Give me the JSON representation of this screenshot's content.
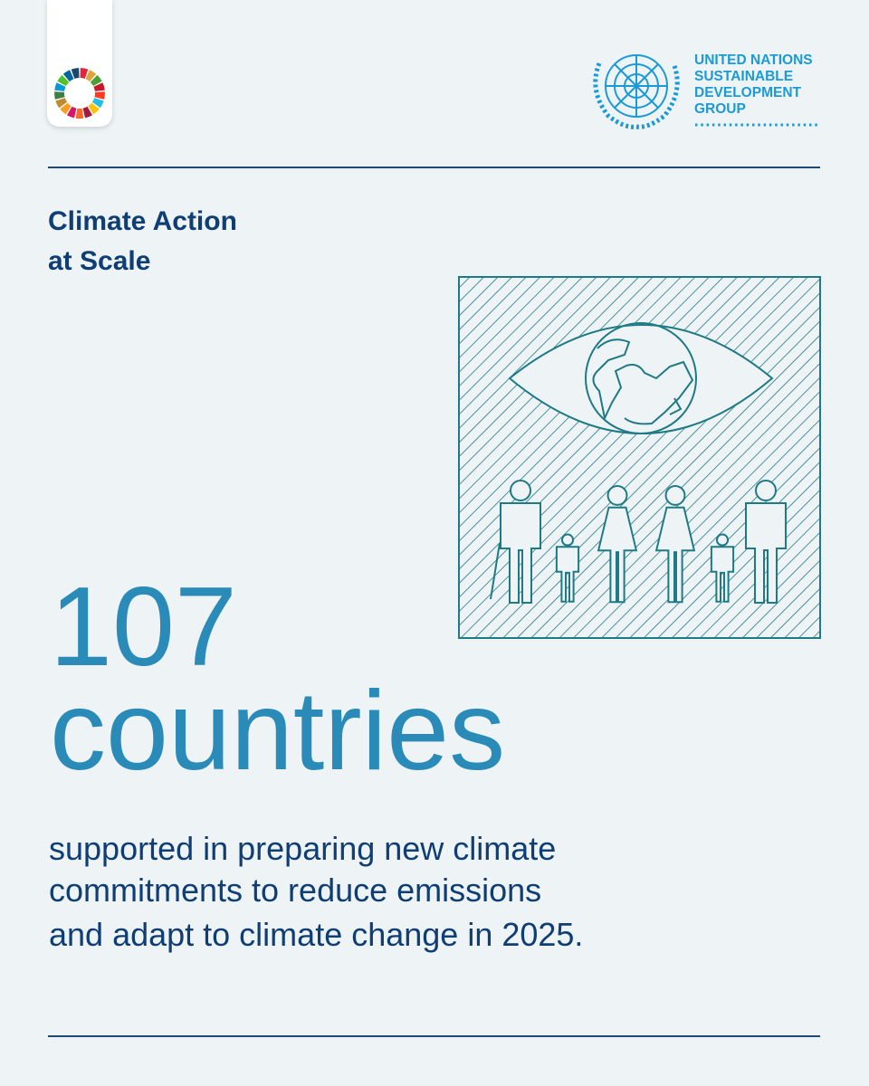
{
  "logo": {
    "lines": [
      "UNITED NATIONS",
      "SUSTAINABLE",
      "DEVELOPMENT",
      "GROUP"
    ]
  },
  "heading": {
    "lines": [
      "Climate Action",
      "at Scale"
    ]
  },
  "stat": {
    "number": "107",
    "unit": "countries"
  },
  "description": {
    "lines": [
      "supported in preparing new climate",
      "commitments to reduce emissions",
      "and adapt to climate change in 2025."
    ]
  }
}
